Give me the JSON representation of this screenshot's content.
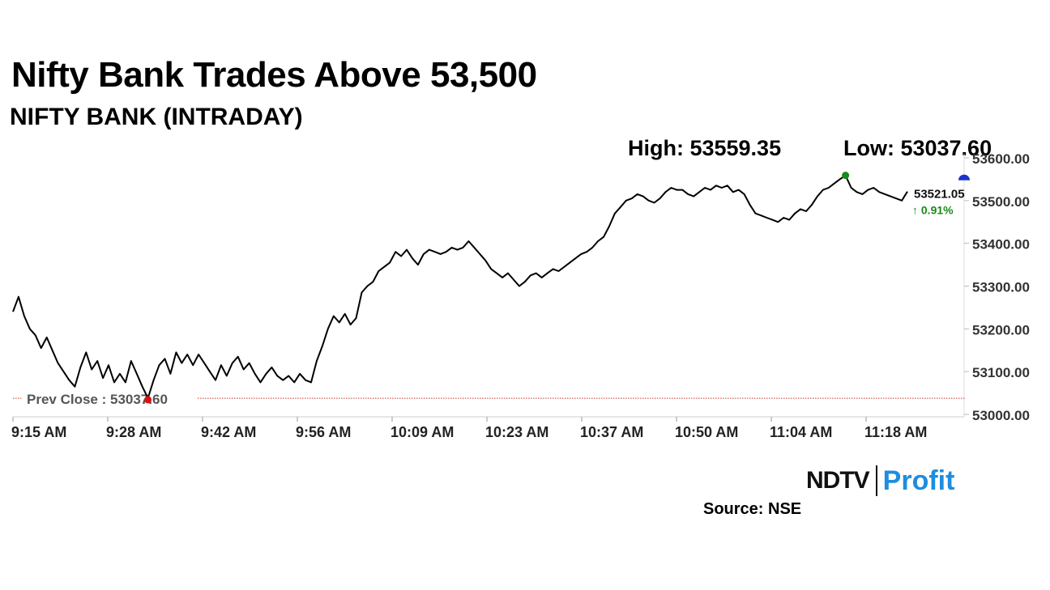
{
  "header": {
    "title": "Nifty Bank Trades Above 53,500",
    "subtitle": "NIFTY BANK (INTRADAY)",
    "high": "High: 53559.35",
    "low": "Low: 53037.60"
  },
  "footer": {
    "source": "Source: NSE",
    "logo_ndtv": "NDTV",
    "logo_profit": "Profit"
  },
  "colors": {
    "line": "#000000",
    "prev_close": "#c0392b",
    "high_marker": "#1a8a1a",
    "low_marker": "#e01010",
    "current_marker": "#1a33cc",
    "change_up": "#1a8a1a"
  },
  "chart_data": {
    "type": "line",
    "ylim": [
      53000,
      53600
    ],
    "yticks": [
      "53000.00",
      "53100.00",
      "53200.00",
      "53300.00",
      "53400.00",
      "53500.00",
      "53600.00"
    ],
    "xticks": [
      "9:15 AM",
      "9:28 AM",
      "9:42 AM",
      "9:56 AM",
      "10:09 AM",
      "10:23 AM",
      "10:37 AM",
      "10:50 AM",
      "11:04 AM",
      "11:18 AM"
    ],
    "prev_close": {
      "value": 53037.6,
      "label": "Prev Close : 53037.60"
    },
    "current": {
      "value": 53521.05,
      "label": "53521.05",
      "change": "↑ 0.91%"
    },
    "high_point": {
      "value": 53559.35
    },
    "low_point": {
      "value": 53037.6
    },
    "series": [
      {
        "values": [
          53240,
          53275,
          53230,
          53200,
          53185,
          53155,
          53180,
          53150,
          53120,
          53100,
          53080,
          53065,
          53110,
          53145,
          53105,
          53125,
          53085,
          53115,
          53075,
          53095,
          53075,
          53125,
          53095,
          53065,
          53038,
          53080,
          53115,
          53130,
          53095,
          53145,
          53120,
          53140,
          53115,
          53140,
          53120,
          53100,
          53080,
          53115,
          53090,
          53120,
          53135,
          53105,
          53120,
          53095,
          53075,
          53095,
          53110,
          53090,
          53080,
          53090,
          53075,
          53095,
          53080,
          53075,
          53125,
          53160,
          53200,
          53230,
          53215,
          53235,
          53210,
          53225,
          53285,
          53300,
          53310,
          53335,
          53345,
          53355,
          53380,
          53370,
          53385,
          53365,
          53350,
          53375,
          53385,
          53380,
          53375,
          53380,
          53390,
          53385,
          53390,
          53405,
          53390,
          53375,
          53360,
          53340,
          53330,
          53320,
          53330,
          53315,
          53300,
          53310,
          53325,
          53330,
          53320,
          53330,
          53340,
          53335,
          53345,
          53355,
          53365,
          53375,
          53380,
          53390,
          53405,
          53415,
          53440,
          53470,
          53485,
          53500,
          53505,
          53515,
          53510,
          53500,
          53495,
          53505,
          53520,
          53530,
          53525,
          53525,
          53515,
          53510,
          53520,
          53530,
          53525,
          53535,
          53530,
          53535,
          53520,
          53525,
          53515,
          53490,
          53470,
          53465,
          53460,
          53455,
          53450,
          53460,
          53455,
          53470,
          53480,
          53475,
          53490,
          53510,
          53525,
          53530,
          53540,
          53550,
          53559,
          53530,
          53520,
          53515,
          53525,
          53530,
          53520,
          53515,
          53510,
          53505,
          53500,
          53521
        ]
      }
    ]
  }
}
